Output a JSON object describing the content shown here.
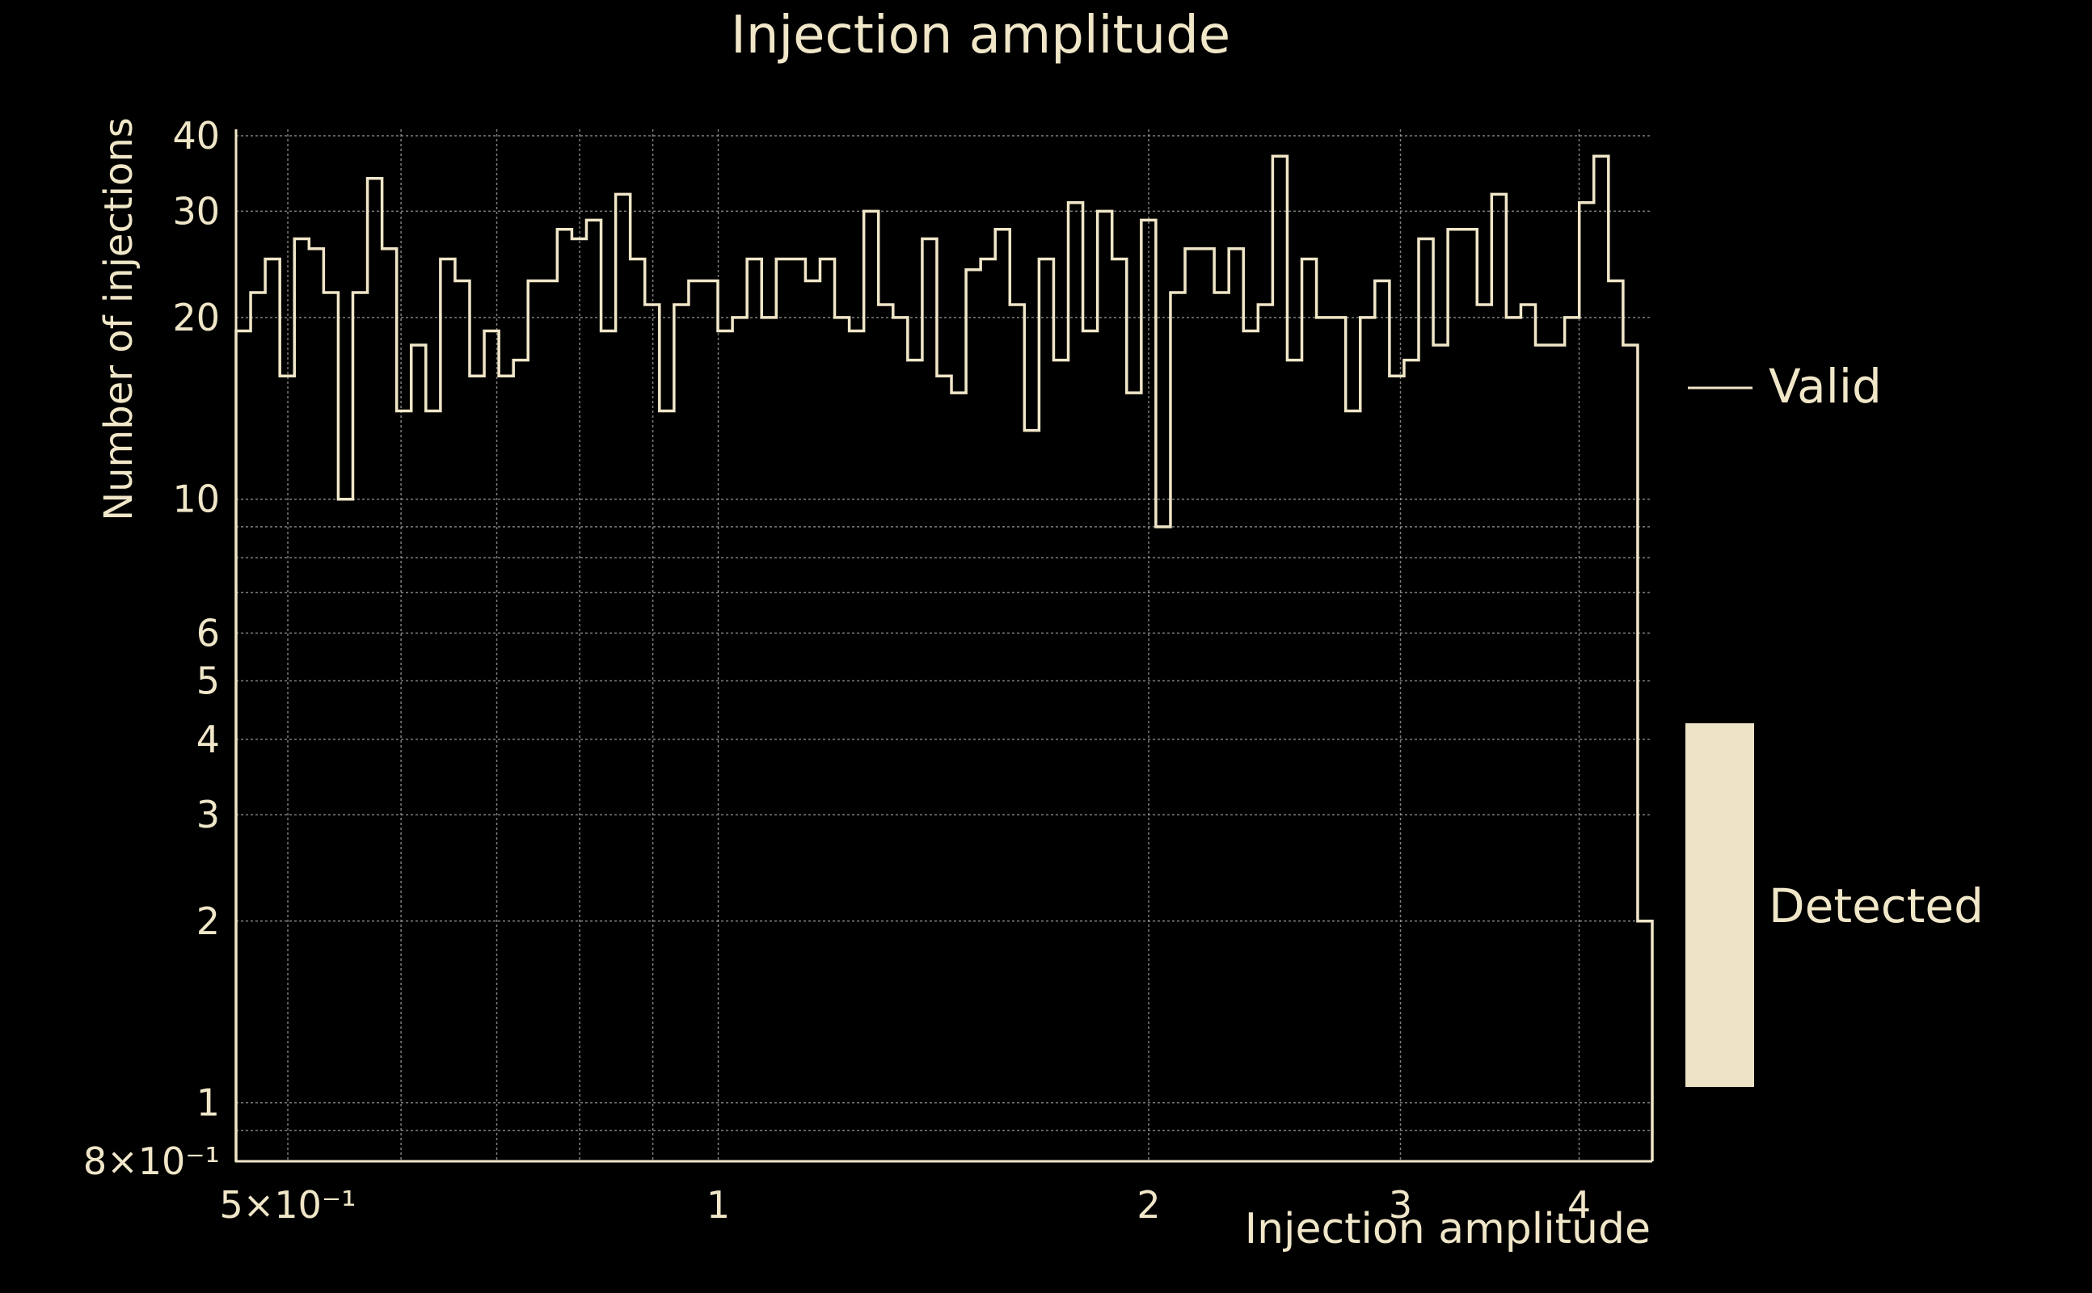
{
  "colors": {
    "background": "#000000",
    "foreground": "#f0e6c8",
    "grid": "#a8a8a8"
  },
  "chart_data": {
    "type": "histogram",
    "title": "Injection amplitude",
    "xlabel": "Injection amplitude",
    "ylabel": "Number of injections",
    "x_scale": "log",
    "y_scale": "log",
    "xlim": [
      0.46,
      4.5
    ],
    "ylim": [
      0.8,
      41
    ],
    "grid": true,
    "legend_position": "right",
    "x_ticks": [
      {
        "value": 0.5,
        "label": "5×10⁻¹"
      },
      {
        "value": 1,
        "label": "1"
      },
      {
        "value": 2,
        "label": "2"
      },
      {
        "value": 3,
        "label": "3"
      },
      {
        "value": 4,
        "label": "4"
      }
    ],
    "x_minor_gridlines": [
      0.6,
      0.7,
      0.8,
      0.9
    ],
    "y_ticks": [
      {
        "value": 0.8,
        "label": "8×10⁻¹"
      },
      {
        "value": 1,
        "label": "1"
      },
      {
        "value": 2,
        "label": "2"
      },
      {
        "value": 3,
        "label": "3"
      },
      {
        "value": 4,
        "label": "4"
      },
      {
        "value": 5,
        "label": "5"
      },
      {
        "value": 6,
        "label": "6"
      },
      {
        "value": 10,
        "label": "10"
      },
      {
        "value": 20,
        "label": "20"
      },
      {
        "value": 30,
        "label": "30"
      },
      {
        "value": 40,
        "label": "40"
      }
    ],
    "y_minor_gridlines": [
      0.9,
      7,
      8,
      9
    ],
    "bin_range": [
      0.46,
      4.5
    ],
    "series": [
      {
        "name": "Valid",
        "style": "step",
        "values": [
          19,
          22,
          25,
          16,
          27,
          26,
          22,
          10,
          22,
          34,
          26,
          14,
          18,
          14,
          25,
          23,
          16,
          19,
          16,
          17,
          23,
          23,
          28,
          27,
          29,
          19,
          32,
          25,
          21,
          14,
          21,
          23,
          23,
          19,
          20,
          25,
          20,
          25,
          25,
          23,
          25,
          20,
          19,
          30,
          21,
          20,
          17,
          27,
          16,
          15,
          24,
          25,
          28,
          21,
          13,
          25,
          17,
          31,
          19,
          30,
          25,
          15,
          29,
          9,
          22,
          26,
          26,
          22,
          26,
          19,
          21,
          37,
          17,
          25,
          20,
          20,
          14,
          20,
          23,
          16,
          17,
          27,
          18,
          28,
          28,
          21,
          32,
          20,
          21,
          18,
          18,
          20,
          31,
          37,
          23,
          18,
          2
        ]
      },
      {
        "name": "Detected",
        "style": "filled",
        "values": []
      }
    ]
  }
}
